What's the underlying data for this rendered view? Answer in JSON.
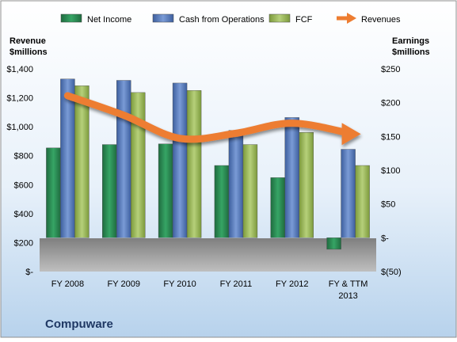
{
  "chart_data": {
    "type": "bar",
    "title": "Compuware",
    "categories": [
      "FY 2008",
      "FY 2009",
      "FY 2010",
      "FY 2011",
      "FY 2012",
      "FY & TTM 2013"
    ],
    "category_lines": [
      [
        "FY 2008"
      ],
      [
        "FY 2009"
      ],
      [
        "FY 2010"
      ],
      [
        "FY 2011"
      ],
      [
        "FY 2012"
      ],
      [
        "FY & TTM",
        "2013"
      ]
    ],
    "left_axis": {
      "label_lines": [
        "Revenue",
        "$millions"
      ],
      "range": [
        0,
        1400
      ],
      "ticks": [
        0,
        200,
        400,
        600,
        800,
        1000,
        1200,
        1400
      ],
      "tick_labels": [
        "$-",
        "$200",
        "$400",
        "$600",
        "$800",
        "$1,000",
        "$1,200",
        "$1,400"
      ]
    },
    "right_axis": {
      "label_lines": [
        "Earnings",
        "$millions"
      ],
      "range": [
        -50,
        250
      ],
      "ticks": [
        -50,
        0,
        50,
        100,
        150,
        200,
        250
      ],
      "tick_labels": [
        "$(50)",
        "$-",
        "$50",
        "$100",
        "$150",
        "$200",
        "$250"
      ]
    },
    "series": [
      {
        "name": "Net Income",
        "type": "bar",
        "axis": "right",
        "color": "#2e8b57",
        "values": [
          133,
          138,
          139,
          107,
          89,
          -17
        ]
      },
      {
        "name": "Cash from Operations",
        "type": "bar",
        "axis": "right",
        "color": "#5b7fbf",
        "values": [
          235,
          233,
          229,
          159,
          178,
          131
        ]
      },
      {
        "name": "FCF",
        "type": "bar",
        "axis": "right",
        "color": "#9bbb59",
        "values": [
          225,
          215,
          218,
          138,
          156,
          107
        ]
      },
      {
        "name": "Revenues",
        "type": "line",
        "axis": "left",
        "color": "#ed7d31",
        "values": [
          1215,
          1080,
          920,
          955,
          1025,
          950
        ]
      }
    ],
    "legend_position": "top",
    "grid": false
  }
}
